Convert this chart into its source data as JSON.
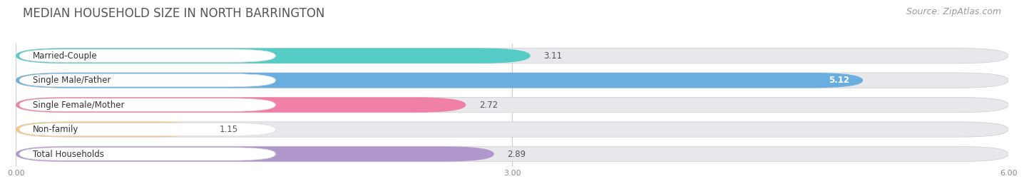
{
  "title": "MEDIAN HOUSEHOLD SIZE IN NORTH BARRINGTON",
  "source": "Source: ZipAtlas.com",
  "categories": [
    "Married-Couple",
    "Single Male/Father",
    "Single Female/Mother",
    "Non-family",
    "Total Households"
  ],
  "values": [
    3.11,
    5.12,
    2.72,
    1.15,
    2.89
  ],
  "bar_colors": [
    "#56ccc6",
    "#6aaee0",
    "#f080a8",
    "#f5c882",
    "#b098cc"
  ],
  "bar_bg_colors": [
    "#e8e8ec",
    "#e8e8ec",
    "#e8e8ec",
    "#e8e8ec",
    "#e8e8ec"
  ],
  "value_colors": [
    "#555555",
    "#ffffff",
    "#555555",
    "#555555",
    "#555555"
  ],
  "label_bg_color": "#ffffff",
  "xlim": [
    0,
    6.0
  ],
  "xtick_labels": [
    "0.00",
    "3.00",
    "6.00"
  ],
  "xtick_values": [
    0.0,
    3.0,
    6.0
  ],
  "title_fontsize": 12,
  "source_fontsize": 9,
  "label_fontsize": 8.5,
  "value_fontsize": 8.5,
  "background_color": "#ffffff"
}
